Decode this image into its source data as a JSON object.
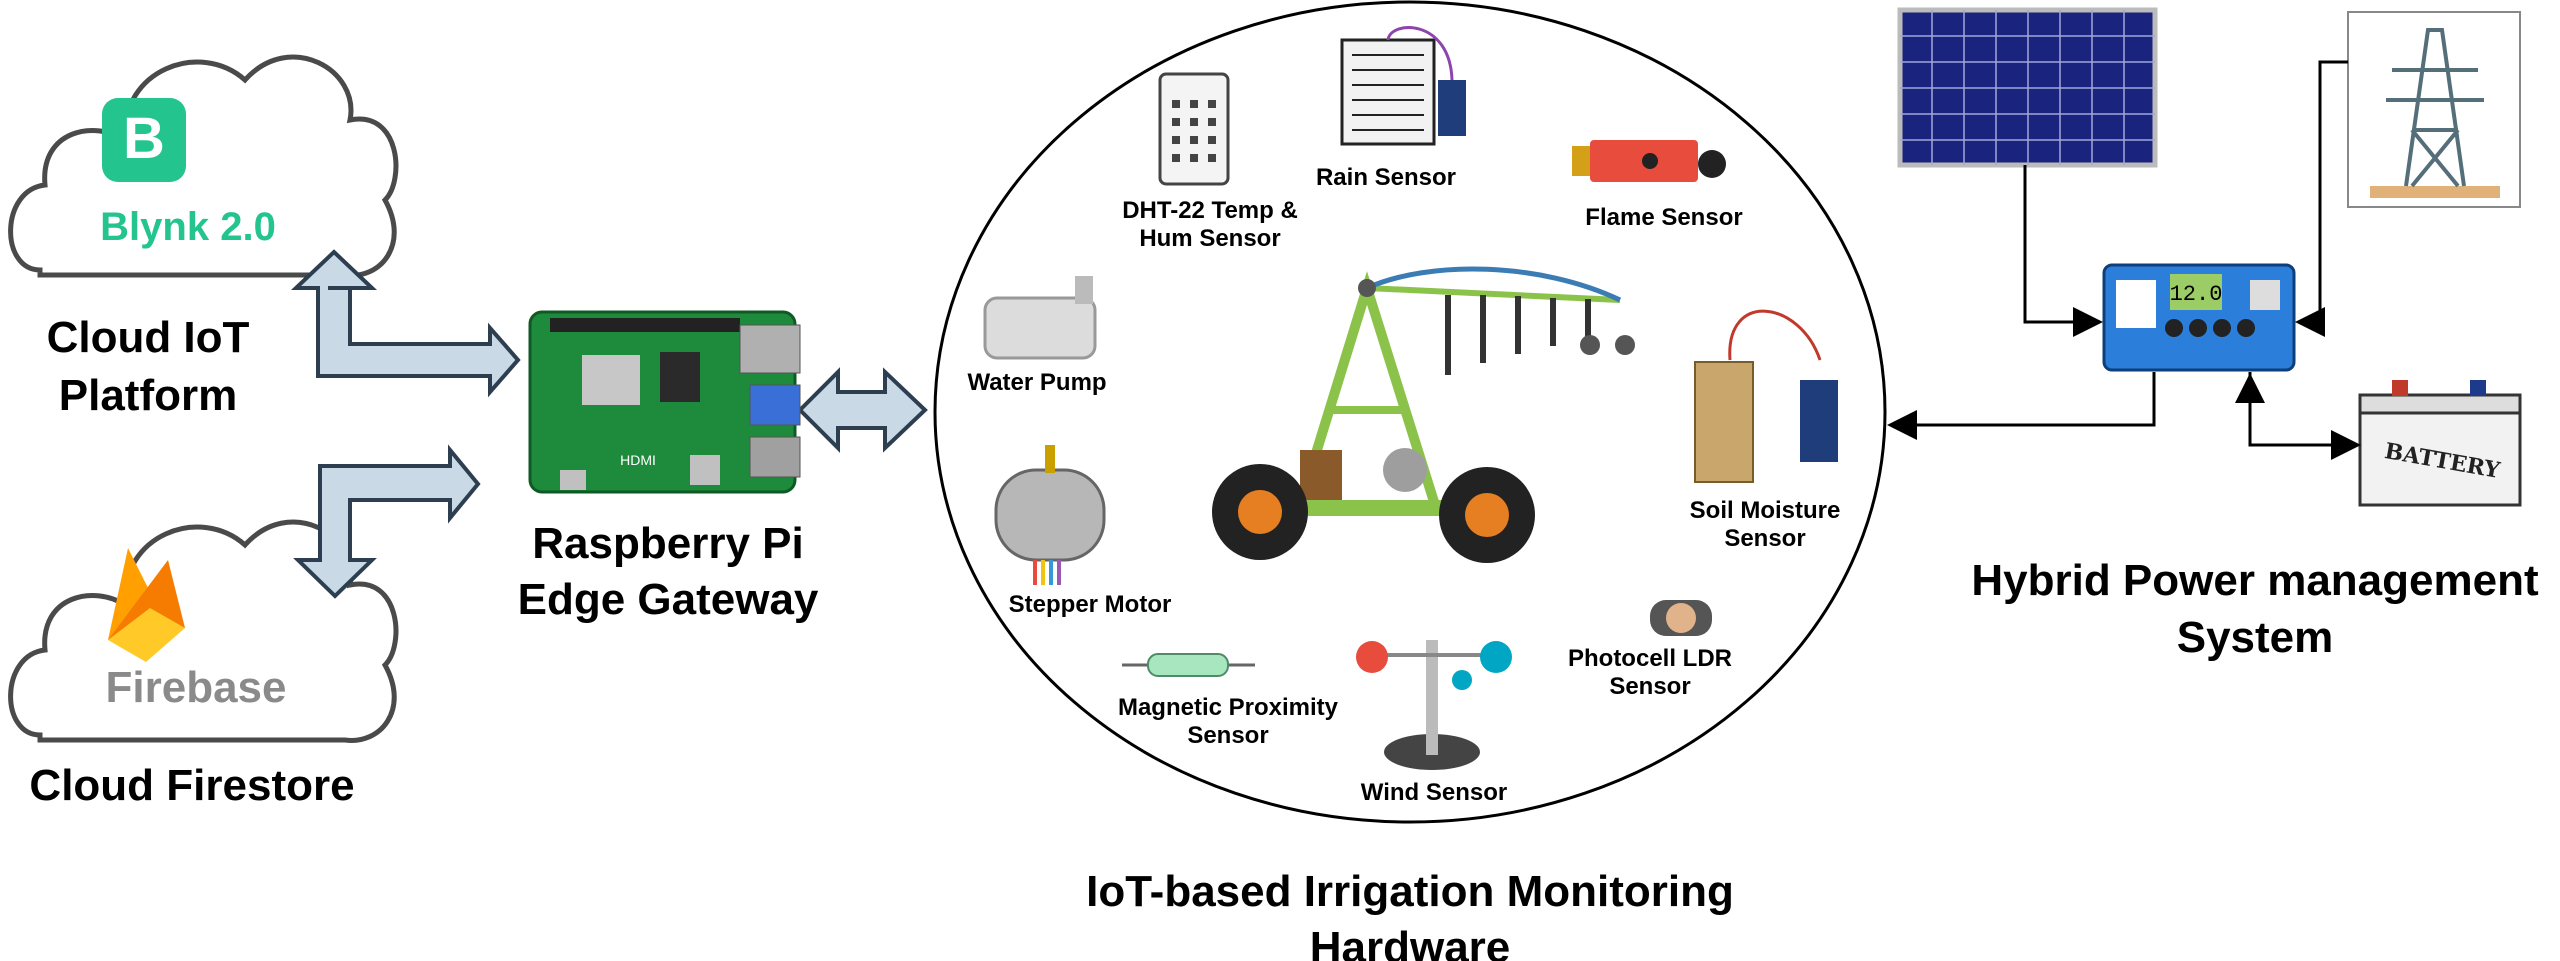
{
  "cloud_platform": {
    "blynk_logo_letter": "B",
    "blynk_name": "Blynk 2.0",
    "caption_line1": "Cloud IoT",
    "caption_line2": "Platform"
  },
  "cloud_storage": {
    "firebase_name": "Firebase",
    "caption": "Cloud Firestore"
  },
  "gateway": {
    "board_text": "HDMI",
    "caption_line1": "Raspberry Pi",
    "caption_line2": "Edge Gateway"
  },
  "hardware": {
    "caption_line1": "IoT-based Irrigation Monitoring",
    "caption_line2": "Hardware",
    "sensors": {
      "rain": "Rain Sensor",
      "dht_line1": "DHT-22 Temp &",
      "dht_line2": "Hum Sensor",
      "flame": "Flame Sensor",
      "pump": "Water Pump",
      "soil_line1": "Soil Moisture",
      "soil_line2": "Sensor",
      "stepper": "Stepper Motor",
      "ldr_line1": "Photocell LDR",
      "ldr_line2": "Sensor",
      "magnetic_line1": "Magnetic Proximity",
      "magnetic_line2": "Sensor",
      "wind": "Wind Sensor"
    }
  },
  "power": {
    "caption_line1": "Hybrid Power management",
    "caption_line2": "System",
    "controller_display": "12.0",
    "battery_label": "BATTERY"
  },
  "colors": {
    "blynk_green": "#23C48E",
    "firebase_gray": "#8a8a8a",
    "pcb_green": "#1e8a3c",
    "arrow_fill": "#c9d9e6",
    "arrow_stroke": "#2d3e50",
    "solar_blue": "#1a237e",
    "pivot_green": "#8bc34a"
  }
}
